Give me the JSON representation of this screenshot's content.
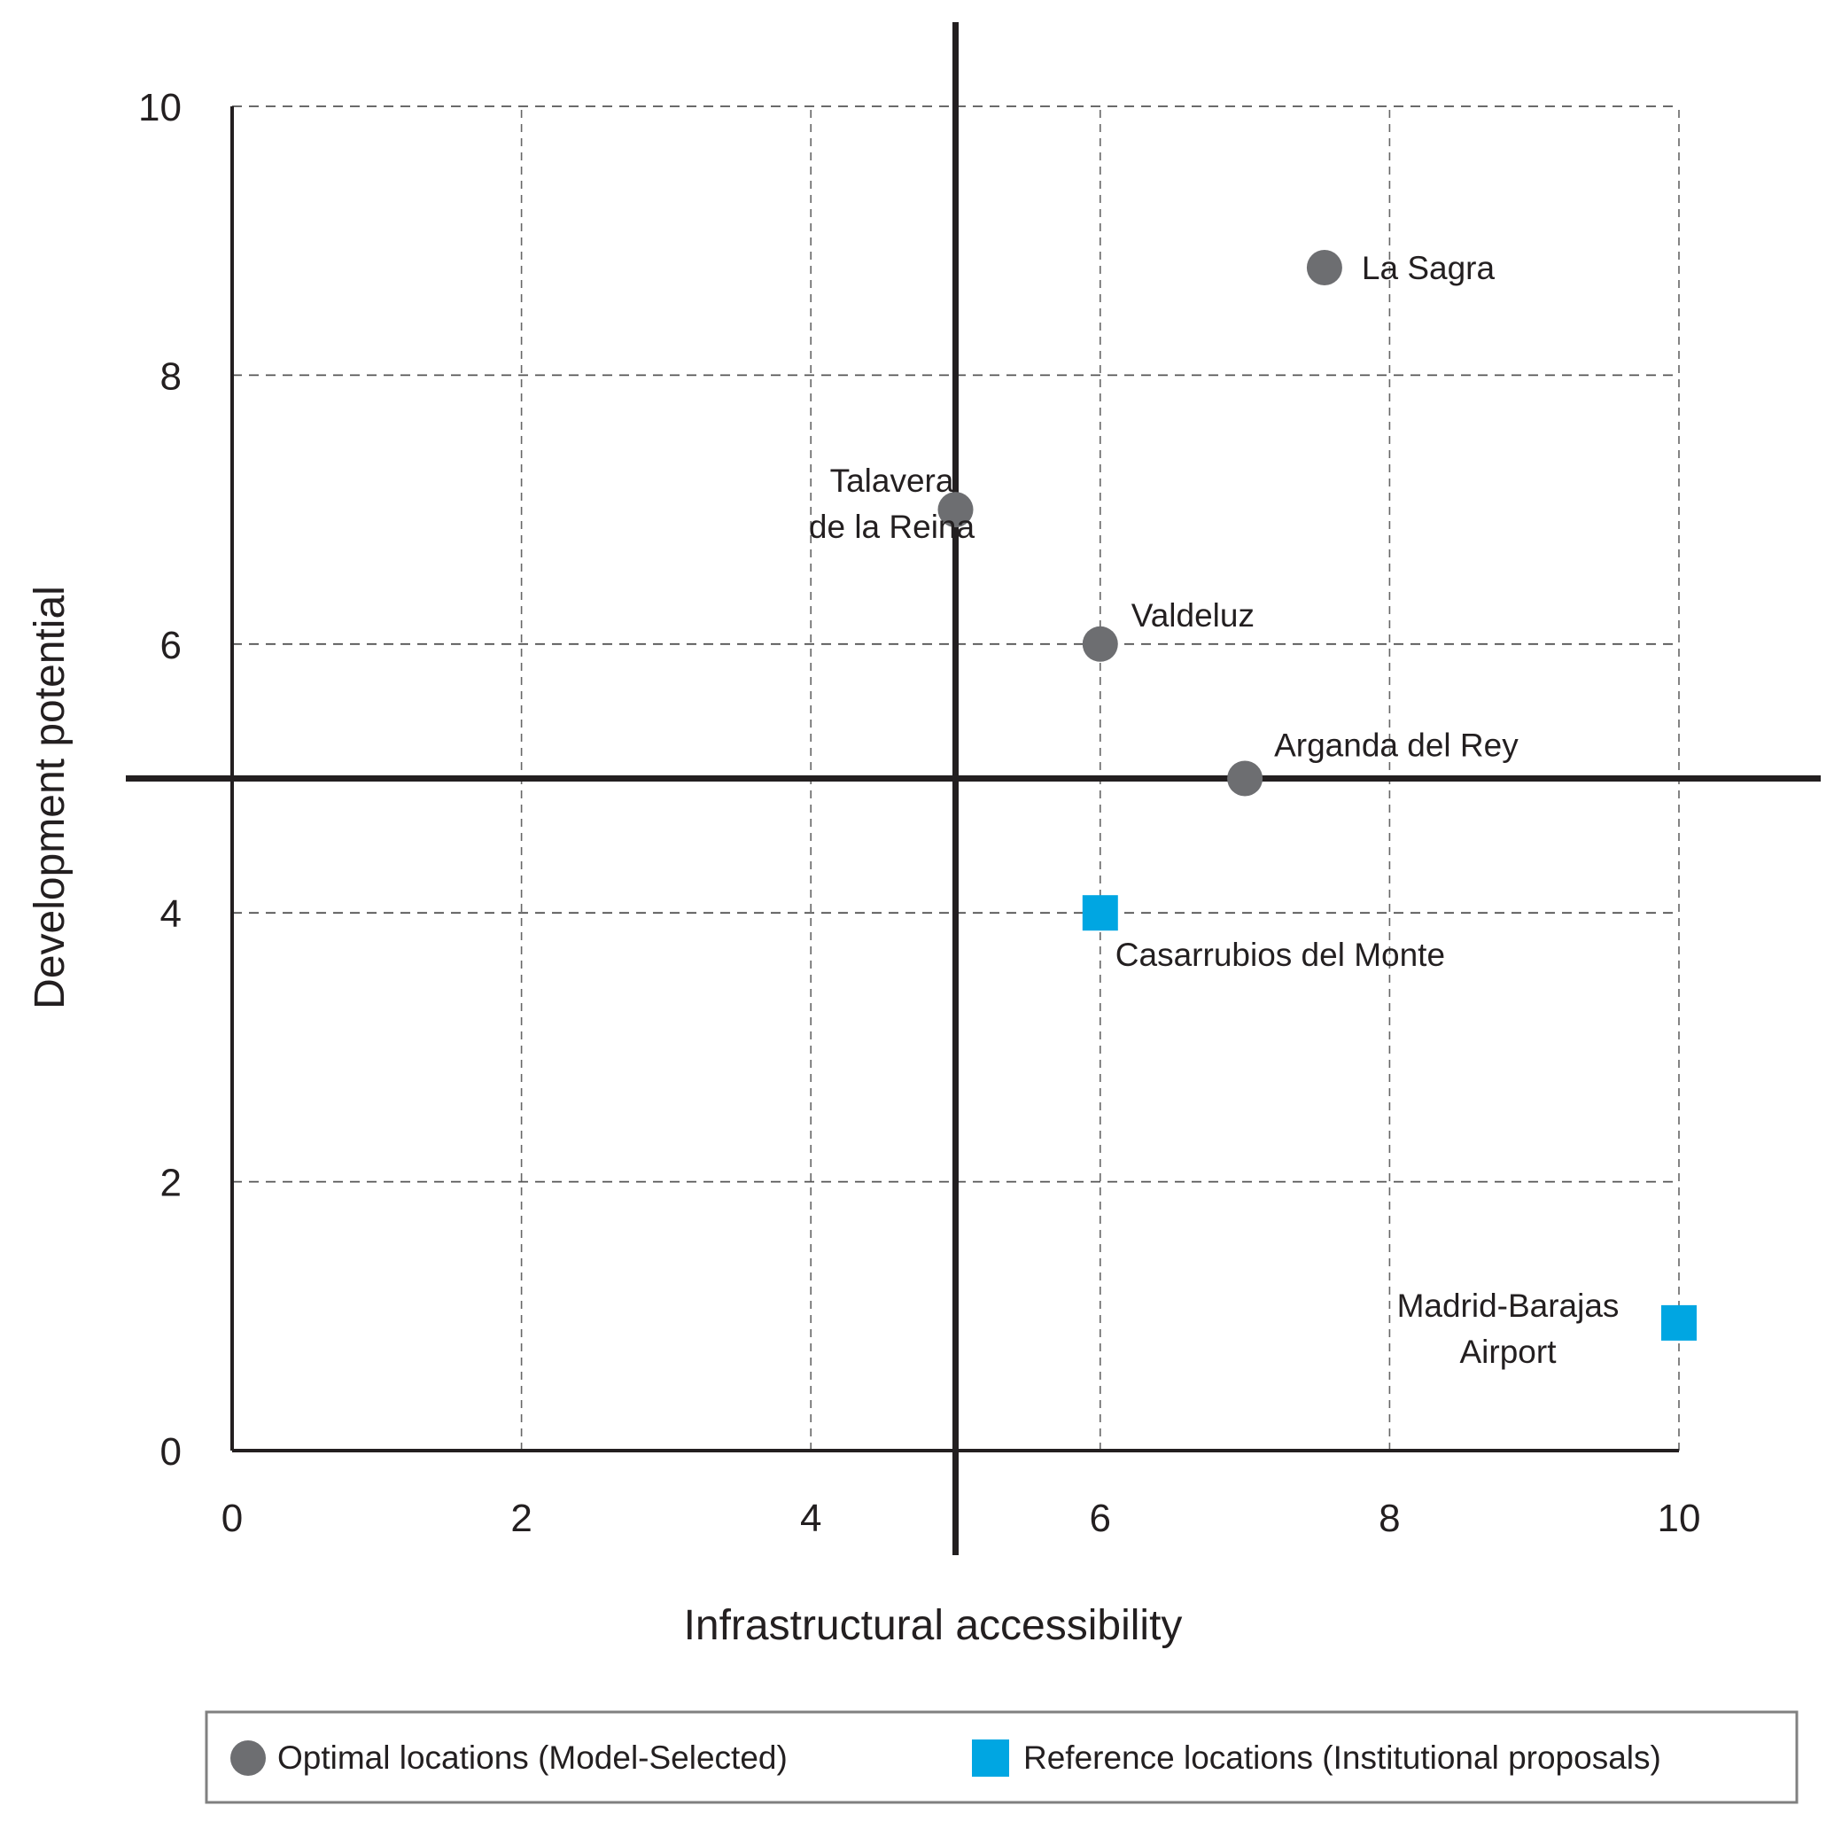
{
  "chart_data": {
    "type": "scatter",
    "title": "",
    "xlabel": "Infrastructural accessibility",
    "ylabel": "Development potential",
    "xlim": [
      0,
      10
    ],
    "ylim": [
      0,
      10
    ],
    "xticks": [
      "0",
      "2",
      "4",
      "6",
      "8",
      "10"
    ],
    "yticks": [
      "0",
      "2",
      "4",
      "6",
      "8",
      "10"
    ],
    "grid": true,
    "quadrant_lines": {
      "x": 5,
      "y": 5
    },
    "series": [
      {
        "name": "Optimal locations (Model-Selected)",
        "marker": "circle",
        "color": "#6d6e71",
        "points": [
          {
            "label": "La Sagra",
            "x": 7.55,
            "y": 8.8
          },
          {
            "label": "Talavera de la Reina",
            "label_lines": [
              "Talavera",
              "de la Reina"
            ],
            "x": 5.0,
            "y": 7.0
          },
          {
            "label": "Valdeluz",
            "x": 6.0,
            "y": 6.0
          },
          {
            "label": "Arganda del Rey",
            "x": 7.0,
            "y": 5.0
          }
        ]
      },
      {
        "name": "Reference locations (Institutional proposals)",
        "marker": "square",
        "color": "#00a6e2",
        "points": [
          {
            "label": "Casarrubios del Monte",
            "x": 6.0,
            "y": 4.0
          },
          {
            "label": "Madrid-Barajas Airport",
            "label_lines": [
              "Madrid-Barajas",
              "Airport"
            ],
            "x": 10.0,
            "y": 0.95
          }
        ]
      }
    ],
    "legend": {
      "position": "bottom",
      "items": [
        {
          "label": "Optimal locations (Model-Selected)",
          "marker": "circle",
          "color": "#6d6e71"
        },
        {
          "label": "Reference locations (Institutional proposals)",
          "marker": "square",
          "color": "#00a6e2"
        }
      ]
    }
  }
}
